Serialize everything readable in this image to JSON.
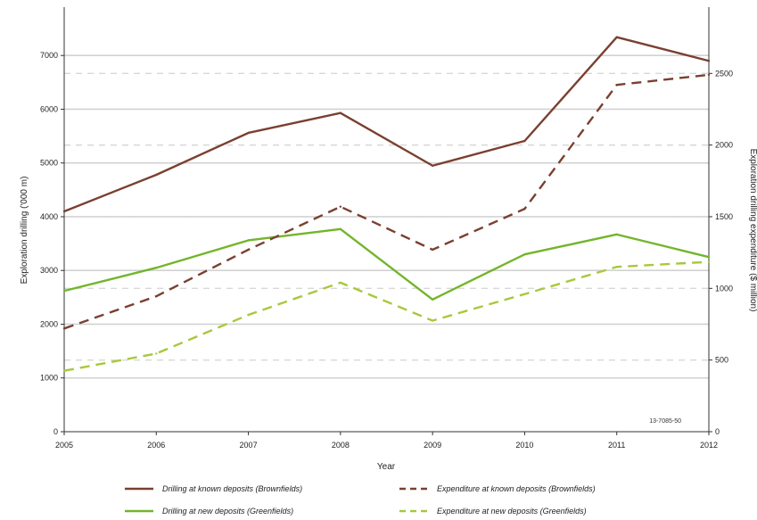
{
  "chart_data": {
    "type": "line",
    "x": [
      "2005",
      "2006",
      "2007",
      "2008",
      "2009",
      "2010",
      "2011",
      "2012"
    ],
    "xlabel": "Year",
    "ylabel_left": "Exploration drilling ('000 m)",
    "ylabel_right": "Exploration drilling expenditure ($ million)",
    "ylim_left": [
      0,
      7800
    ],
    "ylim_right": [
      0,
      2925
    ],
    "yticks_left": [
      "0",
      "1000",
      "2000",
      "3000",
      "4000",
      "5000",
      "6000",
      "7000"
    ],
    "yticks_right": [
      "0",
      "500",
      "1000",
      "1500",
      "2000",
      "2500"
    ],
    "grid": true,
    "legend_position": "bottom",
    "annotation": "13-7085-50",
    "series": [
      {
        "name": "Drilling at known deposits (Brownfields)",
        "axis": "left",
        "style": "solid",
        "color": "#7a4030",
        "values": [
          4100,
          4780,
          5560,
          5930,
          4950,
          5410,
          7340,
          6900
        ]
      },
      {
        "name": "Drilling at new deposits (Greenfields)",
        "axis": "left",
        "style": "solid",
        "color": "#73b52b",
        "values": [
          2620,
          3050,
          3560,
          3770,
          2460,
          3300,
          3670,
          3250
        ]
      },
      {
        "name": "Expenditure at known deposits (Brownfields)",
        "axis": "right",
        "style": "dashed",
        "color": "#7a4030",
        "values": [
          720,
          945,
          1270,
          1570,
          1270,
          1555,
          2420,
          2490
        ]
      },
      {
        "name": "Expenditure at new deposits (Greenfields)",
        "axis": "right",
        "style": "dashed",
        "color": "#a8c83c",
        "values": [
          425,
          545,
          815,
          1040,
          775,
          960,
          1150,
          1185
        ]
      }
    ]
  }
}
